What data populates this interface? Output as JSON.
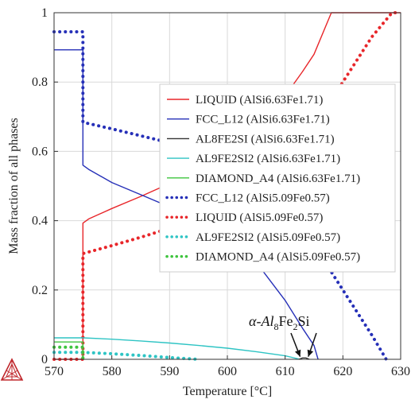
{
  "chart_data": {
    "type": "line",
    "xlabel": "Temperature [°C]",
    "ylabel": "Mass fraction of all phases",
    "xlim": [
      570,
      630
    ],
    "ylim": [
      0,
      1
    ],
    "xticks": [
      570,
      580,
      590,
      600,
      610,
      620,
      630
    ],
    "yticks": [
      0,
      0.2,
      0.4,
      0.6,
      0.8,
      1
    ],
    "ytick_labels": [
      "0",
      "0.2",
      "0.4",
      "0.6",
      "0.8",
      "1"
    ],
    "grid": true,
    "legend_placement": "center-right",
    "annotation": {
      "prefix": "α-Al",
      "sub1": "8",
      "mid": "Fe",
      "sub2": "2",
      "suffix": "Si",
      "targets": [
        [
          612.6,
          0.003
        ],
        [
          614.0,
          0.003
        ]
      ]
    },
    "series": [
      {
        "name": "LIQUID (AlSi6.63Fe1.71)",
        "color": "#e8262a",
        "style": "solid",
        "x": [
          570,
          575,
          575,
          576,
          580,
          585,
          590,
          595,
          600,
          605,
          610,
          613,
          615,
          618,
          630
        ],
        "y": [
          0,
          0,
          0.393,
          0.405,
          0.435,
          0.47,
          0.507,
          0.55,
          0.605,
          0.672,
          0.76,
          0.83,
          0.88,
          1.0,
          1.0
        ]
      },
      {
        "name": "FCC_L12 (AlSi6.63Fe1.71)",
        "color": "#2630b8",
        "style": "solid",
        "x": [
          570,
          575,
          575,
          576,
          580,
          585,
          590,
          595,
          600,
          605,
          610,
          613,
          615,
          615.7
        ],
        "y": [
          0.893,
          0.893,
          0.56,
          0.548,
          0.51,
          0.475,
          0.44,
          0.405,
          0.36,
          0.28,
          0.17,
          0.09,
          0.04,
          0
        ]
      },
      {
        "name": "AL8FE2SI (AlSi6.63Fe1.71)",
        "color": "#333333",
        "style": "solid",
        "x": [
          612.4,
          613,
          613.6,
          614.2
        ],
        "y": [
          0,
          0.004,
          0.004,
          0
        ]
      },
      {
        "name": "AL9FE2SI2 (AlSi6.63Fe1.71)",
        "color": "#2ec4c4",
        "style": "solid",
        "x": [
          570,
          575,
          580,
          585,
          590,
          595,
          600,
          605,
          610,
          612.6
        ],
        "y": [
          0.062,
          0.062,
          0.058,
          0.053,
          0.047,
          0.04,
          0.032,
          0.022,
          0.01,
          0
        ]
      },
      {
        "name": "DIAMOND_A4 (AlSi6.63Fe1.71)",
        "color": "#3ec43e",
        "style": "solid",
        "x": [
          570,
          575,
          575
        ],
        "y": [
          0.05,
          0.05,
          0
        ]
      },
      {
        "name": "FCC_L12 (AlSi5.09Fe0.57)",
        "color": "#2630b8",
        "style": "dotted",
        "x": [
          570,
          575,
          575,
          580,
          585,
          590,
          595,
          600,
          605,
          610,
          615,
          620,
          625,
          627.5
        ],
        "y": [
          0.945,
          0.945,
          0.684,
          0.665,
          0.645,
          0.625,
          0.6,
          0.565,
          0.515,
          0.44,
          0.33,
          0.2,
          0.07,
          0
        ]
      },
      {
        "name": "LIQUID (AlSi5.09Fe0.57)",
        "color": "#e8262a",
        "style": "dotted",
        "x": [
          570,
          575,
          575,
          580,
          585,
          590,
          595,
          600,
          605,
          610,
          615,
          620,
          625,
          628.5,
          630
        ],
        "y": [
          0,
          0,
          0.305,
          0.328,
          0.352,
          0.378,
          0.407,
          0.44,
          0.49,
          0.56,
          0.67,
          0.8,
          0.93,
          1.0,
          1.0
        ]
      },
      {
        "name": "AL9FE2SI2 (AlSi5.09Fe0.57)",
        "color": "#2ec4c4",
        "style": "dotted",
        "x": [
          570,
          575,
          580,
          585,
          590,
          595
        ],
        "y": [
          0.02,
          0.02,
          0.016,
          0.011,
          0.005,
          0
        ]
      },
      {
        "name": "DIAMOND_A4 (AlSi5.09Fe0.57)",
        "color": "#3ec43e",
        "style": "dotted",
        "x": [
          570,
          575,
          575
        ],
        "y": [
          0.035,
          0.035,
          0
        ]
      }
    ]
  }
}
